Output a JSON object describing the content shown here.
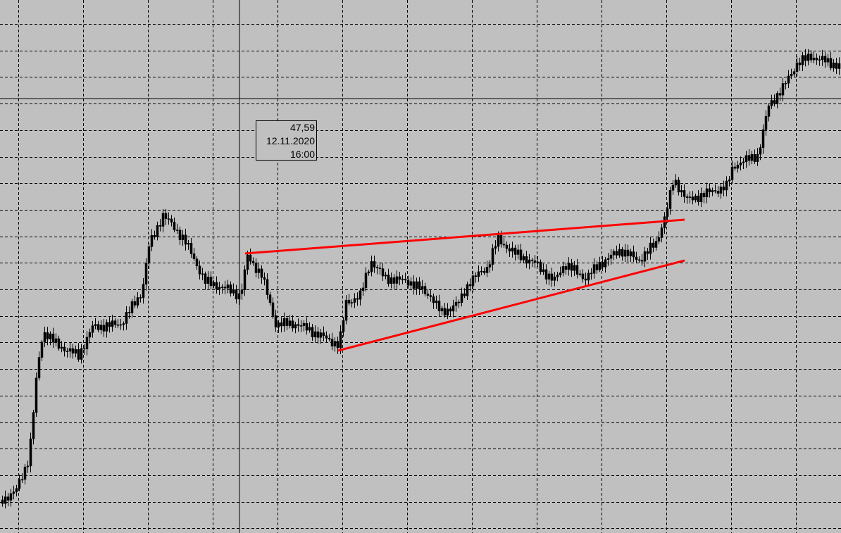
{
  "tooltip": {
    "price": "47,59",
    "date": "12.11.2020",
    "time": "16:00"
  }
}
